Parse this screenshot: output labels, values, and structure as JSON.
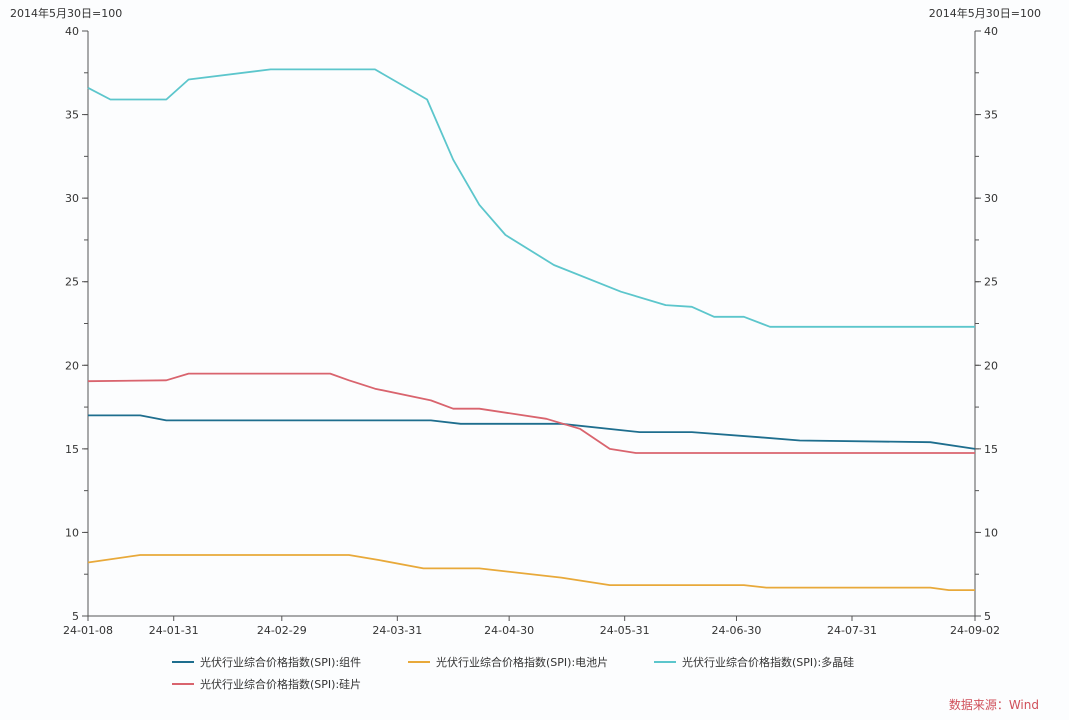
{
  "chart_data": {
    "type": "line",
    "title": "",
    "unit_label_left": "2014年5月30日=100",
    "unit_label_right": "2014年5月30日=100",
    "ylim": [
      5,
      40
    ],
    "yticks": [
      5,
      10,
      15,
      20,
      25,
      30,
      35,
      40
    ],
    "xlim": [
      "2024-01-08",
      "2024-09-02"
    ],
    "xticks": [
      "24-01-08",
      "24-01-31",
      "24-02-29",
      "24-03-31",
      "24-04-30",
      "24-05-31",
      "24-06-30",
      "24-07-31",
      "24-09-02"
    ],
    "xtick_dates": [
      "2024-01-08",
      "2024-01-31",
      "2024-02-29",
      "2024-03-31",
      "2024-04-30",
      "2024-05-31",
      "2024-06-30",
      "2024-07-31",
      "2024-09-02"
    ],
    "grid": false,
    "legend_position": "bottom",
    "source": "数据来源：Wind",
    "series": [
      {
        "name": "光伏行业综合价格指数(SPI):组件",
        "color": "#1e6e8e",
        "points": [
          [
            "2024-01-08",
            17.0
          ],
          [
            "2024-01-22",
            17.0
          ],
          [
            "2024-01-29",
            16.7
          ],
          [
            "2024-04-09",
            16.7
          ],
          [
            "2024-04-17",
            16.5
          ],
          [
            "2024-05-14",
            16.5
          ],
          [
            "2024-06-04",
            16.0
          ],
          [
            "2024-06-18",
            16.0
          ],
          [
            "2024-07-06",
            15.7
          ],
          [
            "2024-07-17",
            15.5
          ],
          [
            "2024-08-21",
            15.4
          ],
          [
            "2024-09-02",
            15.0
          ]
        ]
      },
      {
        "name": "光伏行业综合价格指数(SPI):电池片",
        "color": "#e8a93a",
        "points": [
          [
            "2024-01-08",
            8.2
          ],
          [
            "2024-01-22",
            8.65
          ],
          [
            "2024-03-18",
            8.65
          ],
          [
            "2024-03-26",
            8.35
          ],
          [
            "2024-04-07",
            7.85
          ],
          [
            "2024-04-22",
            7.85
          ],
          [
            "2024-05-14",
            7.3
          ],
          [
            "2024-05-27",
            6.85
          ],
          [
            "2024-07-02",
            6.85
          ],
          [
            "2024-07-08",
            6.7
          ],
          [
            "2024-08-21",
            6.7
          ],
          [
            "2024-08-26",
            6.55
          ],
          [
            "2024-09-02",
            6.55
          ]
        ]
      },
      {
        "name": "光伏行业综合价格指数(SPI):多晶硅",
        "color": "#5cc6cc",
        "points": [
          [
            "2024-01-08",
            36.6
          ],
          [
            "2024-01-14",
            35.9
          ],
          [
            "2024-01-29",
            35.9
          ],
          [
            "2024-02-04",
            37.1
          ],
          [
            "2024-02-26",
            37.7
          ],
          [
            "2024-03-25",
            37.7
          ],
          [
            "2024-04-08",
            35.9
          ],
          [
            "2024-04-15",
            32.3
          ],
          [
            "2024-04-22",
            29.6
          ],
          [
            "2024-04-29",
            27.8
          ],
          [
            "2024-05-12",
            26.0
          ],
          [
            "2024-05-30",
            24.4
          ],
          [
            "2024-06-11",
            23.6
          ],
          [
            "2024-06-18",
            23.5
          ],
          [
            "2024-06-24",
            22.9
          ],
          [
            "2024-07-02",
            22.9
          ],
          [
            "2024-07-09",
            22.3
          ],
          [
            "2024-09-02",
            22.3
          ]
        ]
      },
      {
        "name": "光伏行业综合价格指数(SPI):硅片",
        "color": "#d9646e",
        "points": [
          [
            "2024-01-08",
            19.05
          ],
          [
            "2024-01-29",
            19.1
          ],
          [
            "2024-02-04",
            19.5
          ],
          [
            "2024-03-13",
            19.5
          ],
          [
            "2024-03-18",
            19.1
          ],
          [
            "2024-03-25",
            18.6
          ],
          [
            "2024-04-09",
            17.9
          ],
          [
            "2024-04-15",
            17.4
          ],
          [
            "2024-04-22",
            17.4
          ],
          [
            "2024-05-10",
            16.8
          ],
          [
            "2024-05-19",
            16.2
          ],
          [
            "2024-05-27",
            15.0
          ],
          [
            "2024-06-03",
            14.75
          ],
          [
            "2024-09-02",
            14.75
          ]
        ]
      }
    ]
  }
}
